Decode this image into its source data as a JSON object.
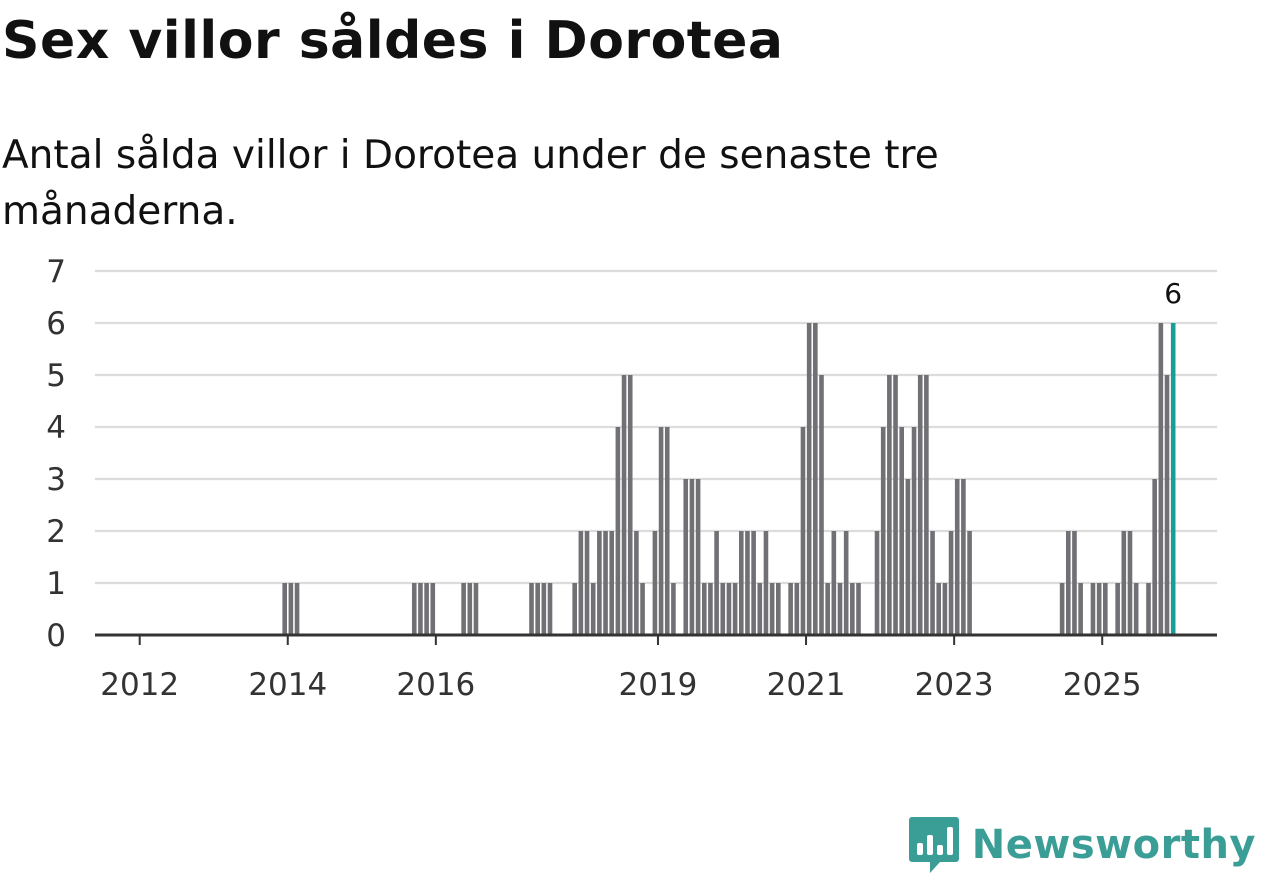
{
  "header": {
    "title": "Sex villor såldes i Dorotea",
    "subtitle": "Antal sålda villor i Dorotea under de senaste tre månaderna."
  },
  "brand": {
    "name": "Newsworthy",
    "color": "#3a9e96",
    "icon": "chart-bubble-icon"
  },
  "colors": {
    "bar": "#707075",
    "highlight": "#1a9e93",
    "grid": "#dcdcdc",
    "axis": "#333333"
  },
  "chart_data": {
    "type": "bar",
    "title": "Sex villor såldes i Dorotea",
    "subtitle": "Antal sålda villor i Dorotea under de senaste tre månaderna.",
    "xlabel": "",
    "ylabel": "",
    "ylim": [
      0,
      7
    ],
    "yticks": [
      0,
      1,
      2,
      3,
      4,
      5,
      6,
      7
    ],
    "grid": true,
    "x_unit": "month",
    "start_month": "2011-06",
    "xticks": [
      {
        "label": "2012",
        "month_index": 7
      },
      {
        "label": "2014",
        "month_index": 31
      },
      {
        "label": "2016",
        "month_index": 55
      },
      {
        "label": "2019",
        "month_index": 91
      },
      {
        "label": "2021",
        "month_index": 115
      },
      {
        "label": "2023",
        "month_index": 139
      },
      {
        "label": "2025",
        "month_index": 163
      }
    ],
    "values": [
      0,
      0,
      0,
      0,
      0,
      0,
      0,
      0,
      0,
      0,
      0,
      0,
      0,
      0,
      0,
      0,
      0,
      0,
      0,
      0,
      0,
      0,
      0,
      0,
      0,
      0,
      0,
      0,
      0,
      0,
      1,
      1,
      1,
      0,
      0,
      0,
      0,
      0,
      0,
      0,
      0,
      0,
      0,
      0,
      0,
      0,
      0,
      0,
      0,
      0,
      0,
      1,
      1,
      1,
      1,
      0,
      0,
      0,
      0,
      1,
      1,
      1,
      0,
      0,
      0,
      0,
      0,
      0,
      0,
      0,
      1,
      1,
      1,
      1,
      0,
      0,
      0,
      1,
      2,
      2,
      1,
      2,
      2,
      2,
      4,
      5,
      5,
      2,
      1,
      0,
      2,
      4,
      4,
      1,
      0,
      3,
      3,
      3,
      1,
      1,
      2,
      1,
      1,
      1,
      2,
      2,
      2,
      1,
      2,
      1,
      1,
      0,
      1,
      1,
      4,
      6,
      6,
      5,
      1,
      2,
      1,
      2,
      1,
      1,
      0,
      0,
      2,
      4,
      5,
      5,
      4,
      3,
      4,
      5,
      5,
      2,
      1,
      1,
      2,
      3,
      3,
      2,
      0,
      0,
      0,
      0,
      0,
      0,
      0,
      0,
      0,
      0,
      0,
      0,
      0,
      0,
      1,
      2,
      2,
      1,
      0,
      1,
      1,
      1,
      0,
      1,
      2,
      2,
      1,
      0,
      1,
      3,
      6,
      5,
      6
    ],
    "highlight_last": true,
    "annotations": [
      {
        "text": "6",
        "target": "last-bar"
      }
    ]
  }
}
